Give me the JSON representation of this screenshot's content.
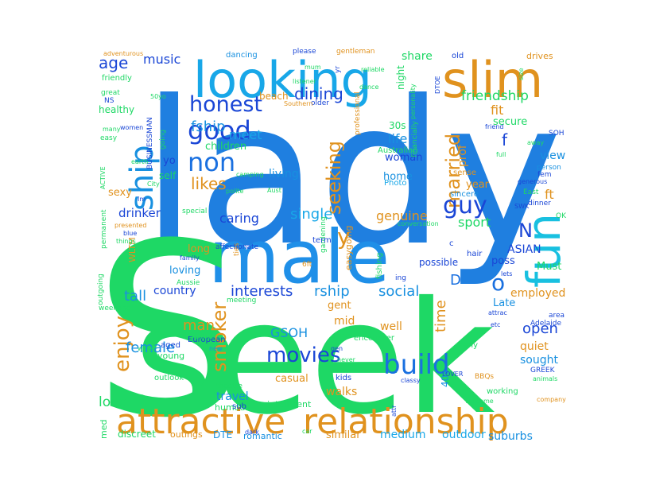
{
  "words": [
    {
      "text": "lady",
      "color": "#1f7fe0"
    },
    {
      "text": "seek",
      "color": "#1ed865"
    },
    {
      "text": "male",
      "color": "#1f8fe8"
    },
    {
      "text": "S",
      "color": "#1ed865"
    },
    {
      "text": "looking",
      "color": "#18a7e8"
    },
    {
      "text": "slim",
      "color": "#e0921e"
    },
    {
      "text": "fun",
      "color": "#18c0e0"
    },
    {
      "text": "attractive",
      "color": "#e0921e"
    },
    {
      "text": "relationship",
      "color": "#e0921e"
    },
    {
      "text": "ship",
      "color": "#1890e0"
    },
    {
      "text": "good",
      "color": "#1a46d6"
    },
    {
      "text": "non",
      "color": "#1a70e0"
    },
    {
      "text": "honest",
      "color": "#1a46d6"
    },
    {
      "text": "seeking",
      "color": "#e0921e"
    },
    {
      "text": "married",
      "color": "#e0921e"
    },
    {
      "text": "build",
      "color": "#1a70e0"
    },
    {
      "text": "movies",
      "color": "#1a46d6"
    },
    {
      "text": "enjoy",
      "color": "#e0921e"
    },
    {
      "text": "smoker",
      "color": "#e0921e"
    },
    {
      "text": "guy",
      "color": "#1a46d6"
    },
    {
      "text": "age",
      "color": "#1a46d6"
    },
    {
      "text": "music",
      "color": "#1a46d6"
    },
    {
      "text": "dining",
      "color": "#1a46d6"
    },
    {
      "text": "friendship",
      "color": "#1ed865"
    },
    {
      "text": "fit",
      "color": "#e0921e"
    },
    {
      "text": "meet",
      "color": "#18a7e8"
    },
    {
      "text": "likes",
      "color": "#e0921e"
    },
    {
      "text": "single",
      "color": "#18a7e8"
    },
    {
      "text": "caring",
      "color": "#1a46d6"
    },
    {
      "text": "genuine",
      "color": "#e0921e"
    },
    {
      "text": "y",
      "color": "#e0921e"
    },
    {
      "text": "o",
      "color": "#1a70e0"
    },
    {
      "text": "N",
      "color": "#1a46d6"
    },
    {
      "text": "interests",
      "color": "#1a46d6"
    },
    {
      "text": "rship",
      "color": "#1890e0"
    },
    {
      "text": "social",
      "color": "#1890e0"
    },
    {
      "text": "tall",
      "color": "#1890e0"
    },
    {
      "text": "female",
      "color": "#1890e0"
    },
    {
      "text": "love",
      "color": "#1ed865"
    },
    {
      "text": "GSOH",
      "color": "#1890e0"
    },
    {
      "text": "time",
      "color": "#e0921e"
    },
    {
      "text": "open",
      "color": "#1a46d6"
    },
    {
      "text": "fship",
      "color": "#1890e0"
    },
    {
      "text": "life",
      "color": "#1890e0"
    },
    {
      "text": "sport",
      "color": "#1ed865"
    },
    {
      "text": "D",
      "color": "#1a70e0"
    },
    {
      "text": "country",
      "color": "#1a46d6"
    },
    {
      "text": "man",
      "color": "#e0921e"
    },
    {
      "text": "drinker",
      "color": "#1a46d6"
    },
    {
      "text": "employed",
      "color": "#e0921e"
    },
    {
      "text": "ASIAN",
      "color": "#1a46d6"
    },
    {
      "text": "travel",
      "color": "#1890e0"
    },
    {
      "text": "walks",
      "color": "#e0921e"
    },
    {
      "text": "well",
      "color": "#e0921e"
    },
    {
      "text": "outdoor",
      "color": "#18a7e8"
    },
    {
      "text": "medium",
      "color": "#18a7e8"
    },
    {
      "text": "similar",
      "color": "#e0921e"
    },
    {
      "text": "suburbs",
      "color": "#1890e0"
    },
    {
      "text": "casual",
      "color": "#e0921e"
    },
    {
      "text": "mid",
      "color": "#e0921e"
    },
    {
      "text": "quiet",
      "color": "#e0921e"
    },
    {
      "text": "sought",
      "color": "#1890e0"
    },
    {
      "text": "share",
      "color": "#1ed865"
    },
    {
      "text": "secure",
      "color": "#1ed865"
    },
    {
      "text": "prof",
      "color": "#e0921e"
    },
    {
      "text": "f",
      "color": "#1a46d6"
    },
    {
      "text": "view",
      "color": "#1890e0"
    },
    {
      "text": "ft",
      "color": "#e0921e"
    },
    {
      "text": "sexy",
      "color": "#e0921e"
    },
    {
      "text": "living",
      "color": "#1890e0"
    },
    {
      "text": "woman",
      "color": "#1a46d6"
    },
    {
      "text": "home",
      "color": "#1890e0"
    },
    {
      "text": "year",
      "color": "#e0921e"
    },
    {
      "text": "loving",
      "color": "#1890e0"
    },
    {
      "text": "long",
      "color": "#e0921e"
    },
    {
      "text": "gent",
      "color": "#e0921e"
    },
    {
      "text": "Late",
      "color": "#1890e0"
    },
    {
      "text": "Must",
      "color": "#1ed865"
    },
    {
      "text": "poss",
      "color": "#1a46d6"
    },
    {
      "text": "possible",
      "color": "#1a46d6"
    },
    {
      "text": "children",
      "color": "#1ed865"
    },
    {
      "text": "beach",
      "color": "#e0921e"
    },
    {
      "text": "night",
      "color": "#1ed865"
    },
    {
      "text": "30s",
      "color": "#1ed865"
    },
    {
      "text": "40s",
      "color": "#1890e0"
    },
    {
      "text": "DTE",
      "color": "#1890e0"
    },
    {
      "text": "med",
      "color": "#1ed865"
    },
    {
      "text": "discreet",
      "color": "#1ed865"
    },
    {
      "text": "outings",
      "color": "#e0921e"
    },
    {
      "text": "romantic",
      "color": "#1890e0"
    },
    {
      "text": "intelligent",
      "color": "#1ed865"
    },
    {
      "text": "humour",
      "color": "#1ed865"
    },
    {
      "text": "self",
      "color": "#1ed865"
    },
    {
      "text": "yo",
      "color": "#1a46d6"
    },
    {
      "text": "healthy",
      "color": "#1ed865"
    },
    {
      "text": "friendly",
      "color": "#1ed865"
    },
    {
      "text": "dancing",
      "color": "#1890e0"
    },
    {
      "text": "old",
      "color": "#1a46d6"
    },
    {
      "text": "drives",
      "color": "#e0921e"
    },
    {
      "text": "sub",
      "color": "#1a46d6"
    },
    {
      "text": "young",
      "color": "#1ed865"
    },
    {
      "text": "aged",
      "color": "#1a46d6"
    },
    {
      "text": "early",
      "color": "#1ed865"
    },
    {
      "text": "working",
      "color": "#1ed865"
    },
    {
      "text": "kids",
      "color": "#1a46d6"
    },
    {
      "text": "nice",
      "color": "#1ed865"
    },
    {
      "text": "encounter",
      "color": "#1ed865"
    },
    {
      "text": "fishing",
      "color": "#1ed865"
    },
    {
      "text": "hair",
      "color": "#1a46d6"
    },
    {
      "text": "Photo",
      "color": "#18a7e8"
    },
    {
      "text": "Australian",
      "color": "#1ed865"
    },
    {
      "text": "Aussie",
      "color": "#1ed865"
    },
    {
      "text": "European",
      "color": "#1a46d6"
    },
    {
      "text": "outlook",
      "color": "#1ed865"
    },
    {
      "text": "theatre",
      "color": "#1ed865"
    },
    {
      "text": "weekend",
      "color": "#1ed865"
    },
    {
      "text": "outgoing",
      "color": "#1ed865"
    },
    {
      "text": "permanent",
      "color": "#1ed865"
    },
    {
      "text": "WLTM",
      "color": "#e0921e"
    },
    {
      "text": "special",
      "color": "#1ed865"
    },
    {
      "text": "sincere",
      "color": "#1890e0"
    },
    {
      "text": "sense",
      "color": "#e0921e"
    },
    {
      "text": "financially",
      "color": "#1ed865"
    },
    {
      "text": "easygoing",
      "color": "#e0921e"
    },
    {
      "text": "affectionate",
      "color": "#1a46d6"
    },
    {
      "text": "gardening",
      "color": "#1ed865"
    },
    {
      "text": "conversation",
      "color": "#1ed865"
    },
    {
      "text": "term",
      "color": "#1a46d6"
    },
    {
      "text": "6ft",
      "color": "#e0921e"
    },
    {
      "text": "ties",
      "color": "#e0921e"
    },
    {
      "text": "meeting",
      "color": "#1ed865"
    },
    {
      "text": "GREEK",
      "color": "#1a46d6"
    },
    {
      "text": "Adelaide",
      "color": "#1a46d6"
    },
    {
      "text": "area",
      "color": "#1a46d6"
    },
    {
      "text": "SOH",
      "color": "#1a46d6"
    },
    {
      "text": "fem",
      "color": "#1a46d6"
    },
    {
      "text": "dinner",
      "color": "#1a46d6"
    },
    {
      "text": "OK",
      "color": "#1ed865"
    },
    {
      "text": "lets",
      "color": "#1a46d6"
    },
    {
      "text": "BBQs",
      "color": "#e0921e"
    },
    {
      "text": "animals",
      "color": "#1ed865"
    },
    {
      "text": "company",
      "color": "#e0921e"
    },
    {
      "text": "gentleman",
      "color": "#e0921e"
    },
    {
      "text": "please",
      "color": "#1a46d6"
    },
    {
      "text": "mum",
      "color": "#1ed865"
    },
    {
      "text": "listener",
      "color": "#1ed865"
    },
    {
      "text": "older",
      "color": "#1a46d6"
    },
    {
      "text": "professional",
      "color": "#e0921e"
    },
    {
      "text": "personality",
      "color": "#1ed865"
    },
    {
      "text": "reliable",
      "color": "#1ed865"
    },
    {
      "text": "dance",
      "color": "#1ed865"
    },
    {
      "text": "adventurous",
      "color": "#e0921e"
    },
    {
      "text": "great",
      "color": "#1ed865"
    },
    {
      "text": "50yo",
      "color": "#1ed865"
    },
    {
      "text": "NS",
      "color": "#1a46d6"
    },
    {
      "text": "BUSINESSMAN",
      "color": "#1a46d6"
    },
    {
      "text": "going",
      "color": "#1ed865"
    },
    {
      "text": "easy",
      "color": "#1ed865"
    },
    {
      "text": "many",
      "color": "#1ed865"
    },
    {
      "text": "women",
      "color": "#1a46d6"
    },
    {
      "text": "earth",
      "color": "#1ed865"
    },
    {
      "text": "City",
      "color": "#1ed865"
    },
    {
      "text": "ACTIVE",
      "color": "#1ed865"
    },
    {
      "text": "Im",
      "color": "#1a46d6"
    },
    {
      "text": "camping",
      "color": "#1ed865"
    },
    {
      "text": "Aust",
      "color": "#1ed865"
    },
    {
      "text": "polite",
      "color": "#1ed865"
    },
    {
      "text": "Southern",
      "color": "#e0921e"
    },
    {
      "text": "presented",
      "color": "#e0921e"
    },
    {
      "text": "blue",
      "color": "#1a46d6"
    },
    {
      "text": "things",
      "color": "#1ed865"
    },
    {
      "text": "family",
      "color": "#1a46d6"
    },
    {
      "text": "partner",
      "color": "#1ed865"
    },
    {
      "text": "wine",
      "color": "#1ed865"
    },
    {
      "text": "new",
      "color": "#1890e0"
    },
    {
      "text": "gen",
      "color": "#1a46d6"
    },
    {
      "text": "never",
      "color": "#1ed865"
    },
    {
      "text": "classy",
      "color": "#1a46d6"
    },
    {
      "text": "LOVER",
      "color": "#1a46d6"
    },
    {
      "text": "welcome",
      "color": "#1ed865"
    },
    {
      "text": "etc",
      "color": "#1a46d6"
    },
    {
      "text": "attrac",
      "color": "#1a46d6"
    },
    {
      "text": "friend",
      "color": "#1a46d6"
    },
    {
      "text": "away",
      "color": "#1ed865"
    },
    {
      "text": "person",
      "color": "#1890e0"
    },
    {
      "text": "full",
      "color": "#1ed865"
    },
    {
      "text": "generous",
      "color": "#1a46d6"
    },
    {
      "text": "East",
      "color": "#1ed865"
    },
    {
      "text": "SWK",
      "color": "#1a46d6"
    },
    {
      "text": "size",
      "color": "#1ed865"
    },
    {
      "text": "yr",
      "color": "#1a46d6"
    },
    {
      "text": "DTOE",
      "color": "#1a46d6"
    },
    {
      "text": "c",
      "color": "#1a46d6"
    },
    {
      "text": "ing",
      "color": "#1a46d6"
    },
    {
      "text": "attr",
      "color": "#1a46d6"
    },
    {
      "text": "dark",
      "color": "#1a46d6"
    },
    {
      "text": "car",
      "color": "#1ed865"
    }
  ]
}
